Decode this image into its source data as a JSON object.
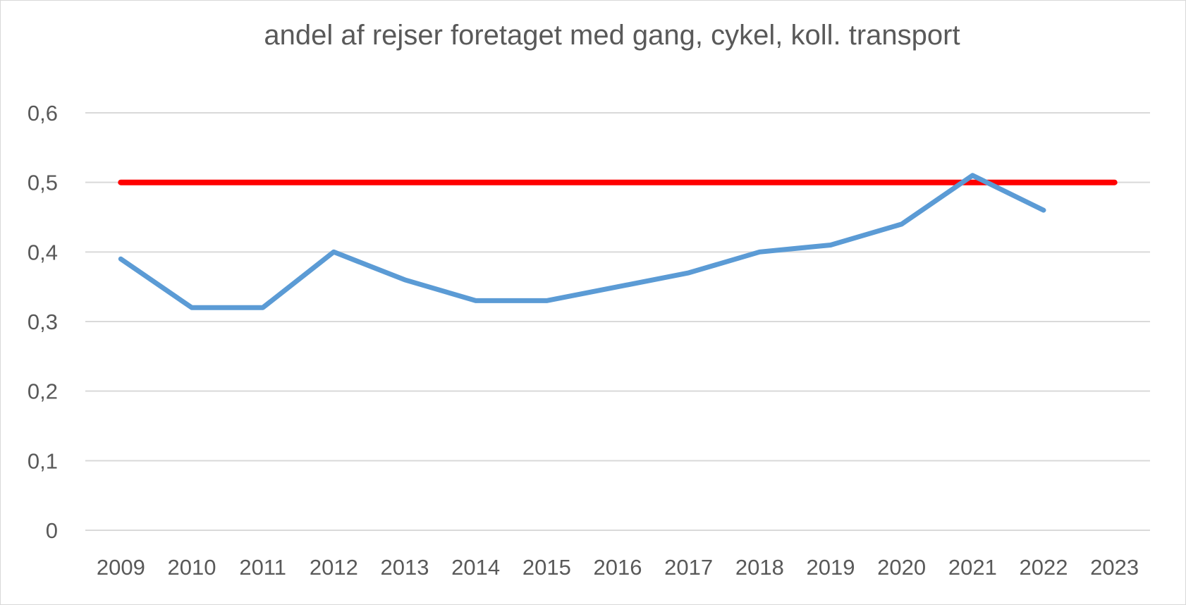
{
  "chart_data": {
    "type": "line",
    "title": "andel af rejser foretaget med gang, cykel, koll. transport",
    "xlabel": "",
    "ylabel": "",
    "categories": [
      "2009",
      "2010",
      "2011",
      "2012",
      "2013",
      "2014",
      "2015",
      "2016",
      "2017",
      "2018",
      "2019",
      "2020",
      "2021",
      "2022",
      "2023"
    ],
    "yticks": [
      "0",
      "0,1",
      "0,2",
      "0,3",
      "0,4",
      "0,5",
      "0,6"
    ],
    "ylim": [
      0,
      0.6
    ],
    "grid": true,
    "legend": "none",
    "series": [
      {
        "values": [
          0.39,
          0.32,
          0.32,
          0.4,
          0.36,
          0.33,
          0.33,
          0.35,
          0.37,
          0.4,
          0.41,
          0.44,
          0.51,
          0.46,
          null
        ],
        "color": "#5B9BD5"
      },
      {
        "values": [
          0.5,
          0.5,
          0.5,
          0.5,
          0.5,
          0.5,
          0.5,
          0.5,
          0.5,
          0.5,
          0.5,
          0.5,
          0.5,
          0.5,
          0.5
        ],
        "color": "#FF0000"
      }
    ]
  }
}
